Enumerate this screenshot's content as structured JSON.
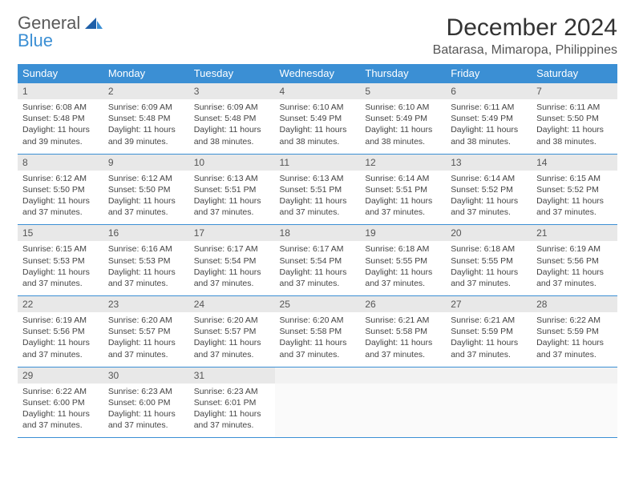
{
  "logo": {
    "text1": "General",
    "text2": "Blue"
  },
  "title": "December 2024",
  "location": "Batarasa, Mimaropa, Philippines",
  "colors": {
    "header_bg": "#3b8fd4",
    "header_text": "#ffffff",
    "daynum_bg": "#e8e8e8",
    "border": "#3b8fd4",
    "body_text": "#444444",
    "page_bg": "#ffffff"
  },
  "typography": {
    "title_fontsize": 30,
    "location_fontsize": 16,
    "dow_fontsize": 13,
    "daynum_fontsize": 12,
    "detail_fontsize": 10.5
  },
  "dow": [
    "Sunday",
    "Monday",
    "Tuesday",
    "Wednesday",
    "Thursday",
    "Friday",
    "Saturday"
  ],
  "weeks": [
    {
      "nums": [
        "1",
        "2",
        "3",
        "4",
        "5",
        "6",
        "7"
      ],
      "details": [
        {
          "sunrise": "Sunrise: 6:08 AM",
          "sunset": "Sunset: 5:48 PM",
          "day1": "Daylight: 11 hours",
          "day2": "and 39 minutes."
        },
        {
          "sunrise": "Sunrise: 6:09 AM",
          "sunset": "Sunset: 5:48 PM",
          "day1": "Daylight: 11 hours",
          "day2": "and 39 minutes."
        },
        {
          "sunrise": "Sunrise: 6:09 AM",
          "sunset": "Sunset: 5:48 PM",
          "day1": "Daylight: 11 hours",
          "day2": "and 38 minutes."
        },
        {
          "sunrise": "Sunrise: 6:10 AM",
          "sunset": "Sunset: 5:49 PM",
          "day1": "Daylight: 11 hours",
          "day2": "and 38 minutes."
        },
        {
          "sunrise": "Sunrise: 6:10 AM",
          "sunset": "Sunset: 5:49 PM",
          "day1": "Daylight: 11 hours",
          "day2": "and 38 minutes."
        },
        {
          "sunrise": "Sunrise: 6:11 AM",
          "sunset": "Sunset: 5:49 PM",
          "day1": "Daylight: 11 hours",
          "day2": "and 38 minutes."
        },
        {
          "sunrise": "Sunrise: 6:11 AM",
          "sunset": "Sunset: 5:50 PM",
          "day1": "Daylight: 11 hours",
          "day2": "and 38 minutes."
        }
      ]
    },
    {
      "nums": [
        "8",
        "9",
        "10",
        "11",
        "12",
        "13",
        "14"
      ],
      "details": [
        {
          "sunrise": "Sunrise: 6:12 AM",
          "sunset": "Sunset: 5:50 PM",
          "day1": "Daylight: 11 hours",
          "day2": "and 37 minutes."
        },
        {
          "sunrise": "Sunrise: 6:12 AM",
          "sunset": "Sunset: 5:50 PM",
          "day1": "Daylight: 11 hours",
          "day2": "and 37 minutes."
        },
        {
          "sunrise": "Sunrise: 6:13 AM",
          "sunset": "Sunset: 5:51 PM",
          "day1": "Daylight: 11 hours",
          "day2": "and 37 minutes."
        },
        {
          "sunrise": "Sunrise: 6:13 AM",
          "sunset": "Sunset: 5:51 PM",
          "day1": "Daylight: 11 hours",
          "day2": "and 37 minutes."
        },
        {
          "sunrise": "Sunrise: 6:14 AM",
          "sunset": "Sunset: 5:51 PM",
          "day1": "Daylight: 11 hours",
          "day2": "and 37 minutes."
        },
        {
          "sunrise": "Sunrise: 6:14 AM",
          "sunset": "Sunset: 5:52 PM",
          "day1": "Daylight: 11 hours",
          "day2": "and 37 minutes."
        },
        {
          "sunrise": "Sunrise: 6:15 AM",
          "sunset": "Sunset: 5:52 PM",
          "day1": "Daylight: 11 hours",
          "day2": "and 37 minutes."
        }
      ]
    },
    {
      "nums": [
        "15",
        "16",
        "17",
        "18",
        "19",
        "20",
        "21"
      ],
      "details": [
        {
          "sunrise": "Sunrise: 6:15 AM",
          "sunset": "Sunset: 5:53 PM",
          "day1": "Daylight: 11 hours",
          "day2": "and 37 minutes."
        },
        {
          "sunrise": "Sunrise: 6:16 AM",
          "sunset": "Sunset: 5:53 PM",
          "day1": "Daylight: 11 hours",
          "day2": "and 37 minutes."
        },
        {
          "sunrise": "Sunrise: 6:17 AM",
          "sunset": "Sunset: 5:54 PM",
          "day1": "Daylight: 11 hours",
          "day2": "and 37 minutes."
        },
        {
          "sunrise": "Sunrise: 6:17 AM",
          "sunset": "Sunset: 5:54 PM",
          "day1": "Daylight: 11 hours",
          "day2": "and 37 minutes."
        },
        {
          "sunrise": "Sunrise: 6:18 AM",
          "sunset": "Sunset: 5:55 PM",
          "day1": "Daylight: 11 hours",
          "day2": "and 37 minutes."
        },
        {
          "sunrise": "Sunrise: 6:18 AM",
          "sunset": "Sunset: 5:55 PM",
          "day1": "Daylight: 11 hours",
          "day2": "and 37 minutes."
        },
        {
          "sunrise": "Sunrise: 6:19 AM",
          "sunset": "Sunset: 5:56 PM",
          "day1": "Daylight: 11 hours",
          "day2": "and 37 minutes."
        }
      ]
    },
    {
      "nums": [
        "22",
        "23",
        "24",
        "25",
        "26",
        "27",
        "28"
      ],
      "details": [
        {
          "sunrise": "Sunrise: 6:19 AM",
          "sunset": "Sunset: 5:56 PM",
          "day1": "Daylight: 11 hours",
          "day2": "and 37 minutes."
        },
        {
          "sunrise": "Sunrise: 6:20 AM",
          "sunset": "Sunset: 5:57 PM",
          "day1": "Daylight: 11 hours",
          "day2": "and 37 minutes."
        },
        {
          "sunrise": "Sunrise: 6:20 AM",
          "sunset": "Sunset: 5:57 PM",
          "day1": "Daylight: 11 hours",
          "day2": "and 37 minutes."
        },
        {
          "sunrise": "Sunrise: 6:20 AM",
          "sunset": "Sunset: 5:58 PM",
          "day1": "Daylight: 11 hours",
          "day2": "and 37 minutes."
        },
        {
          "sunrise": "Sunrise: 6:21 AM",
          "sunset": "Sunset: 5:58 PM",
          "day1": "Daylight: 11 hours",
          "day2": "and 37 minutes."
        },
        {
          "sunrise": "Sunrise: 6:21 AM",
          "sunset": "Sunset: 5:59 PM",
          "day1": "Daylight: 11 hours",
          "day2": "and 37 minutes."
        },
        {
          "sunrise": "Sunrise: 6:22 AM",
          "sunset": "Sunset: 5:59 PM",
          "day1": "Daylight: 11 hours",
          "day2": "and 37 minutes."
        }
      ]
    },
    {
      "nums": [
        "29",
        "30",
        "31",
        "",
        "",
        "",
        ""
      ],
      "details": [
        {
          "sunrise": "Sunrise: 6:22 AM",
          "sunset": "Sunset: 6:00 PM",
          "day1": "Daylight: 11 hours",
          "day2": "and 37 minutes."
        },
        {
          "sunrise": "Sunrise: 6:23 AM",
          "sunset": "Sunset: 6:00 PM",
          "day1": "Daylight: 11 hours",
          "day2": "and 37 minutes."
        },
        {
          "sunrise": "Sunrise: 6:23 AM",
          "sunset": "Sunset: 6:01 PM",
          "day1": "Daylight: 11 hours",
          "day2": "and 37 minutes."
        },
        null,
        null,
        null,
        null
      ]
    }
  ]
}
